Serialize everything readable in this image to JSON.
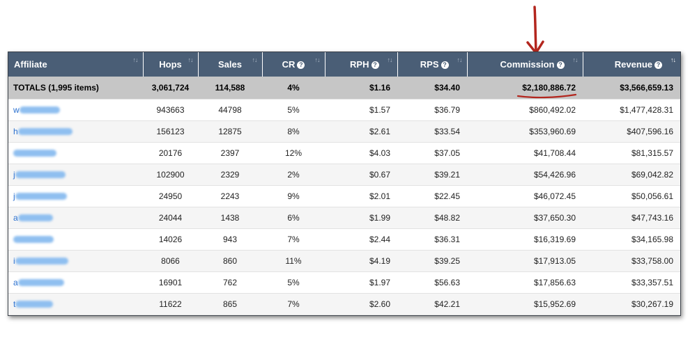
{
  "table": {
    "headers": {
      "affiliate": "Affiliate",
      "hops": "Hops",
      "sales": "Sales",
      "cr": "CR",
      "rph": "RPH",
      "rps": "RPS",
      "commission": "Commission",
      "revenue": "Revenue"
    },
    "sort_icon": "↑↓",
    "sort_active_icon": "↑↓",
    "help_icon": "?",
    "totals": {
      "label": "TOTALS (1,995 items)",
      "hops": "3,061,724",
      "sales": "114,588",
      "cr": "4%",
      "rph": "$1.16",
      "rps": "$34.40",
      "commission": "$2,180,886.72",
      "revenue": "$3,566,659.13"
    },
    "rows": [
      {
        "aff": "w",
        "hops": "943663",
        "sales": "44798",
        "cr": "5%",
        "rph": "$1.57",
        "rps": "$36.79",
        "commission": "$860,492.02",
        "revenue": "$1,477,428.31"
      },
      {
        "aff": "h",
        "hops": "156123",
        "sales": "12875",
        "cr": "8%",
        "rph": "$2.61",
        "rps": "$33.54",
        "commission": "$353,960.69",
        "revenue": "$407,596.16"
      },
      {
        "aff": "",
        "hops": "20176",
        "sales": "2397",
        "cr": "12%",
        "rph": "$4.03",
        "rps": "$37.05",
        "commission": "$41,708.44",
        "revenue": "$81,315.57"
      },
      {
        "aff": "j",
        "hops": "102900",
        "sales": "2329",
        "cr": "2%",
        "rph": "$0.67",
        "rps": "$39.21",
        "commission": "$54,426.96",
        "revenue": "$69,042.82"
      },
      {
        "aff": "j",
        "hops": "24950",
        "sales": "2243",
        "cr": "9%",
        "rph": "$2.01",
        "rps": "$22.45",
        "commission": "$46,072.45",
        "revenue": "$50,056.61"
      },
      {
        "aff": "a",
        "hops": "24044",
        "sales": "1438",
        "cr": "6%",
        "rph": "$1.99",
        "rps": "$48.82",
        "commission": "$37,650.30",
        "revenue": "$47,743.16"
      },
      {
        "aff": "",
        "hops": "14026",
        "sales": "943",
        "cr": "7%",
        "rph": "$2.44",
        "rps": "$36.31",
        "commission": "$16,319.69",
        "revenue": "$34,165.98"
      },
      {
        "aff": "i",
        "hops": "8066",
        "sales": "860",
        "cr": "11%",
        "rph": "$4.19",
        "rps": "$39.25",
        "commission": "$17,913.05",
        "revenue": "$33,758.00"
      },
      {
        "aff": "a",
        "hops": "16901",
        "sales": "762",
        "cr": "5%",
        "rph": "$1.97",
        "rps": "$56.63",
        "commission": "$17,856.63",
        "revenue": "$33,357.51"
      },
      {
        "aff": "t",
        "hops": "11622",
        "sales": "865",
        "cr": "7%",
        "rph": "$2.60",
        "rps": "$42.21",
        "commission": "$15,952.69",
        "revenue": "$30,267.19"
      }
    ]
  },
  "annotation": {
    "arrow_icon": "down-arrow-icon",
    "color": "#b3261e"
  }
}
